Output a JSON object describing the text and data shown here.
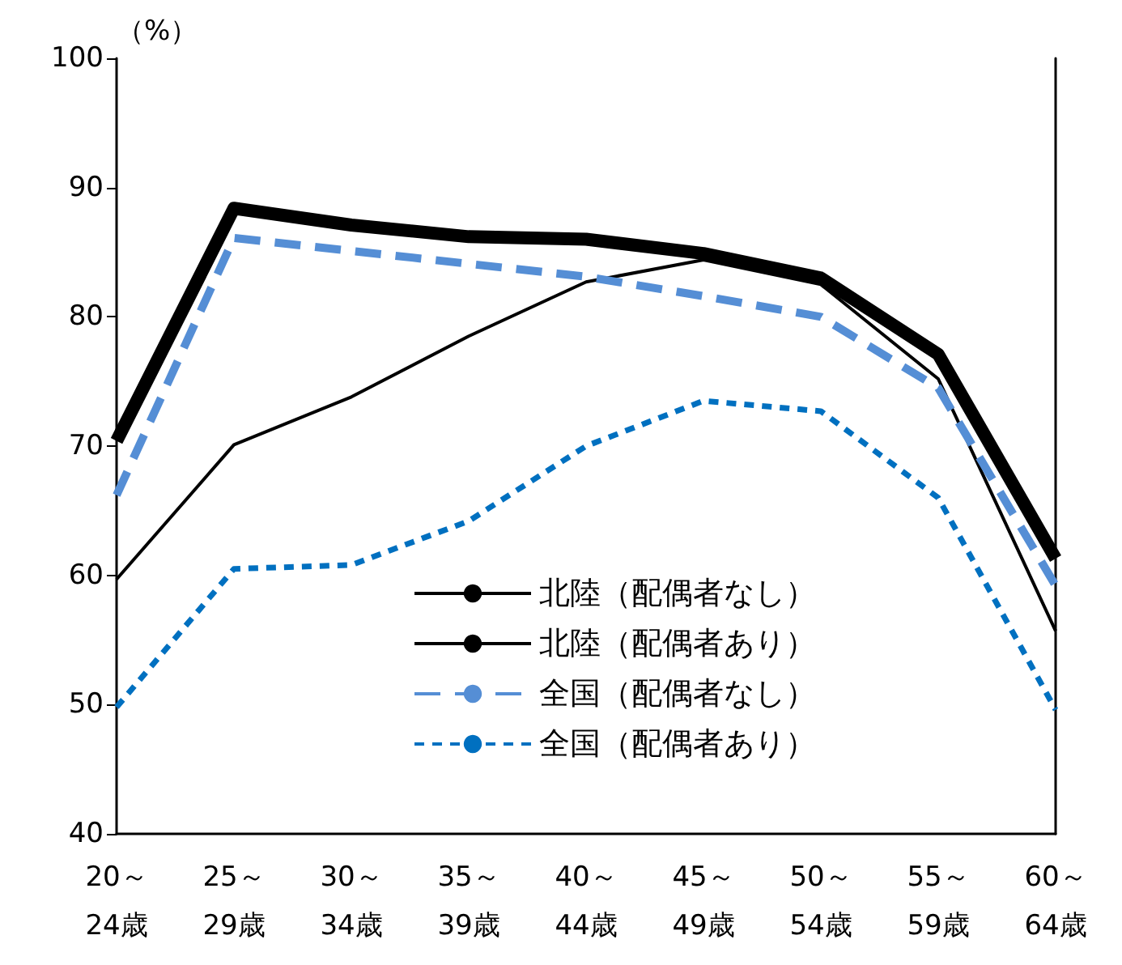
{
  "chart_data": {
    "type": "line",
    "ylabel": "（%）",
    "categories": [
      "20～\n24歳",
      "25～\n29歳",
      "30～\n34歳",
      "35～\n39歳",
      "40～\n44歳",
      "45～\n49歳",
      "50～\n54歳",
      "55～\n59歳",
      "60～\n64歳"
    ],
    "series": [
      {
        "name": "北陸（配偶者なし）",
        "color": "#000000",
        "line_style": "solid",
        "values": [
          70.4,
          88.4,
          87.1,
          86.2,
          86.0,
          84.9,
          83.0,
          77.1,
          61.3
        ]
      },
      {
        "name": "北陸（配偶者あり）",
        "color": "#000000",
        "line_style": "solid",
        "values": [
          59.7,
          70.1,
          73.8,
          78.5,
          82.7,
          84.4,
          82.5,
          75.2,
          55.7
        ]
      },
      {
        "name": "全国（配偶者なし）",
        "color": "#558ed5",
        "line_style": "dashed",
        "values": [
          66.2,
          86.1,
          85.1,
          84.1,
          83.1,
          81.6,
          80.0,
          74.5,
          59.2
        ]
      },
      {
        "name": "全国（配偶者あり）",
        "color": "#0070c0",
        "line_style": "dotted",
        "values": [
          49.8,
          60.5,
          60.8,
          64.2,
          70.0,
          73.5,
          72.7,
          66.0,
          49.6
        ]
      }
    ],
    "ylim": [
      40,
      100
    ],
    "yticks": [
      40,
      50,
      60,
      70,
      80,
      90,
      100
    ],
    "grid": false,
    "legend": "bottom right",
    "marker": "none"
  }
}
